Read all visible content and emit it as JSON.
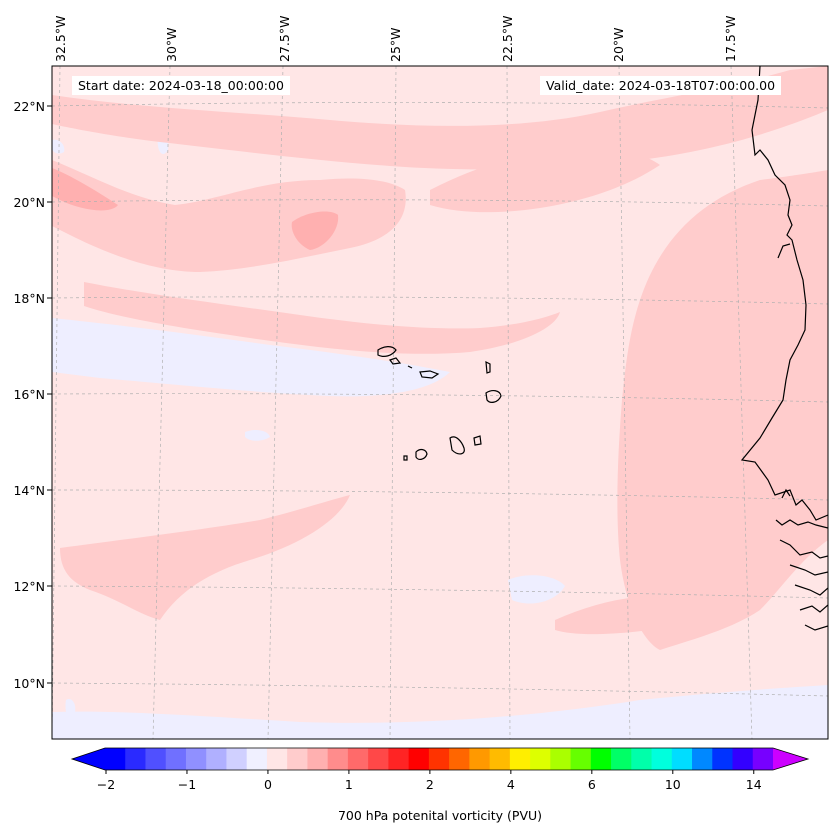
{
  "map": {
    "start_label": "Start date: 2024-03-18_00:00:00",
    "valid_label": "Valid_date: 2024-03-18T07:00:00.00",
    "lon_labels": [
      "32.5°W",
      "30°W",
      "27.5°W",
      "25°W",
      "22.5°W",
      "20°W",
      "17.5°W"
    ],
    "lat_labels": [
      "22°N",
      "20°N",
      "18°N",
      "16°N",
      "14°N",
      "12°N",
      "10°N"
    ],
    "field": "700 hPa potential vorticity",
    "field_min_pvu": -0.5,
    "field_max_pvu": 0.8,
    "background_level_color": "#ffe6e6"
  },
  "colorbar": {
    "title": "700 hPa potenital vorticity (PVU)",
    "tick_labels": [
      "−2",
      "−1",
      "0",
      "1",
      "2",
      "4",
      "6",
      "10",
      "14"
    ],
    "colors": [
      "#0000ff",
      "#2a2aff",
      "#5050ff",
      "#7070ff",
      "#9090ff",
      "#b0b0ff",
      "#d0d0ff",
      "#f0f0ff",
      "#ffe6e6",
      "#ffcccc",
      "#ffb0b0",
      "#ff8c8c",
      "#ff6a6a",
      "#ff4848",
      "#ff2424",
      "#ff0000",
      "#ff3300",
      "#ff6600",
      "#ff9900",
      "#ffbb00",
      "#ffee00",
      "#ddff00",
      "#aaff00",
      "#66ff00",
      "#00ff00",
      "#00ff66",
      "#00ffaa",
      "#00ffdd",
      "#00ddff",
      "#0088ff",
      "#0033ff",
      "#3300ff",
      "#7700ff"
    ],
    "extend_low_color": "#0000ff",
    "extend_high_color": "#cc00ff"
  }
}
